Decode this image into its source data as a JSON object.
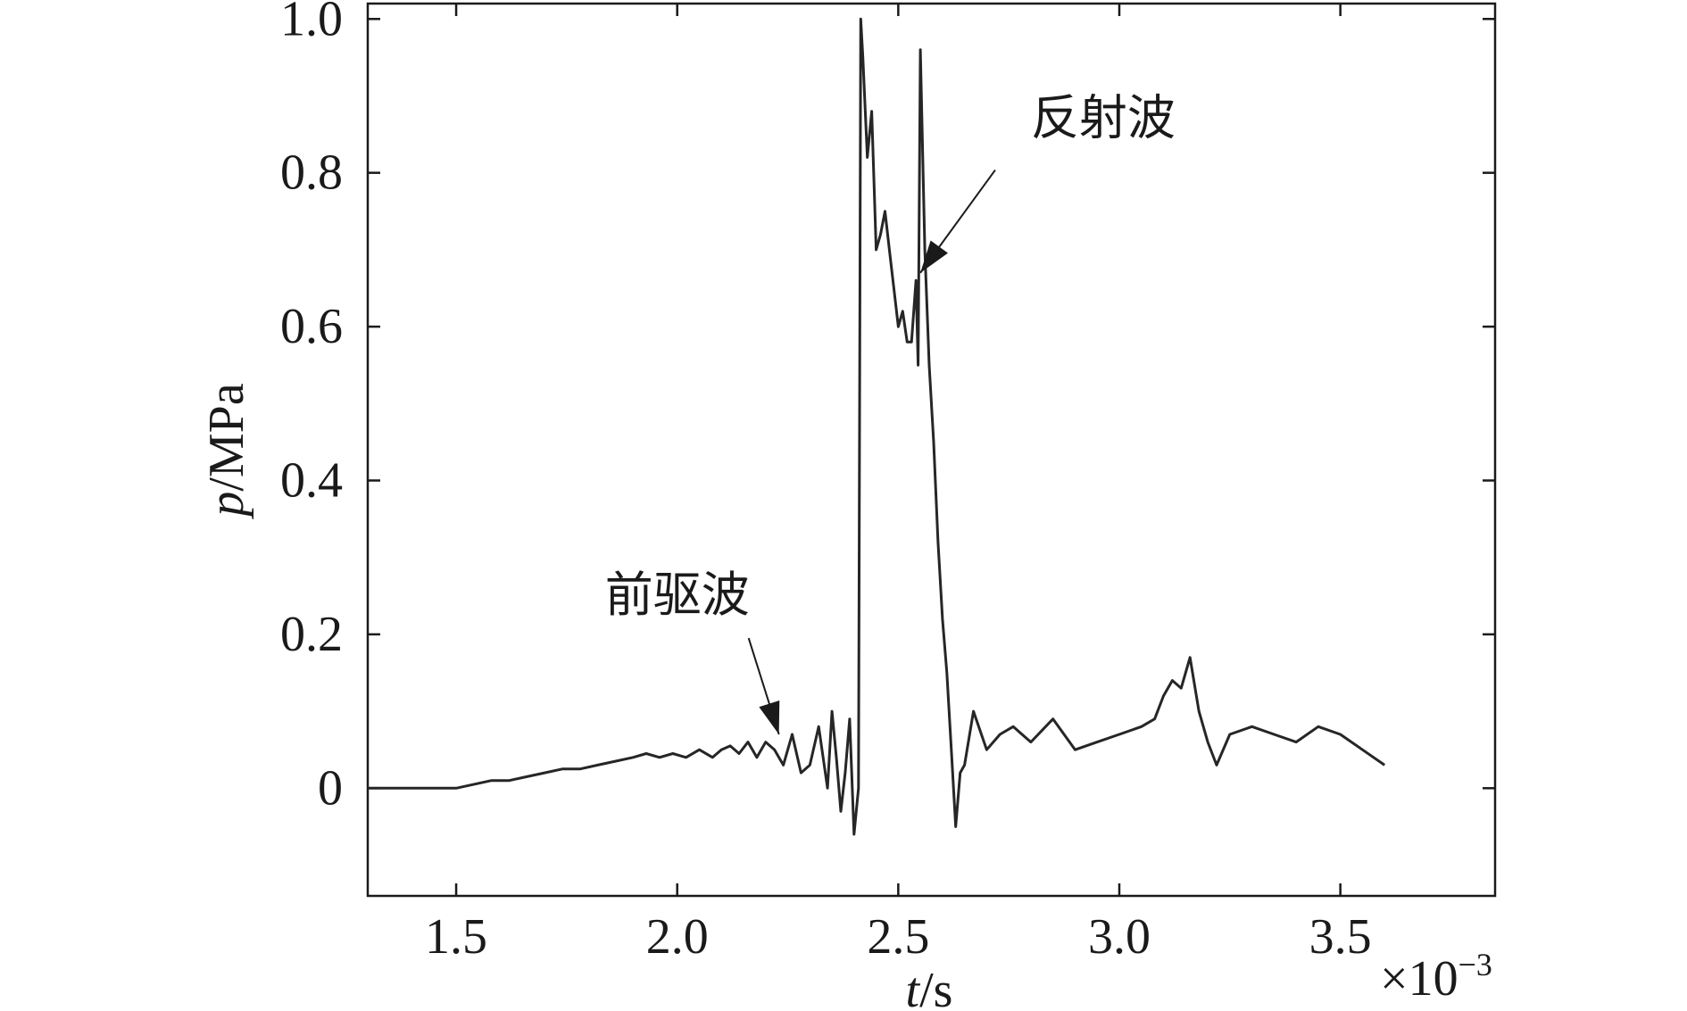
{
  "chart_data": {
    "type": "line",
    "xlabel": "t/s",
    "xlabel_italic": "t",
    "xlabel_rest": "/s",
    "ylabel": "p/MPa",
    "ylabel_italic": "p",
    "ylabel_rest": "/MPa",
    "x_multiplier": "×10",
    "x_multiplier_exp": "−3",
    "xlim": [
      1.3,
      3.85
    ],
    "ylim": [
      -0.14,
      1.02
    ],
    "x_ticks": [
      1.5,
      2.0,
      2.5,
      3.0,
      3.5
    ],
    "x_tick_labels": [
      "1.5",
      "2.0",
      "2.5",
      "3.0",
      "3.5"
    ],
    "y_ticks": [
      0,
      0.2,
      0.4,
      0.6,
      0.8,
      1.0
    ],
    "y_tick_labels": [
      "0",
      "0.2",
      "0.4",
      "0.6",
      "0.8",
      "1.0"
    ],
    "grid": false,
    "series": [
      {
        "x": [
          1.3,
          1.4,
          1.5,
          1.58,
          1.62,
          1.66,
          1.7,
          1.74,
          1.78,
          1.82,
          1.86,
          1.9,
          1.93,
          1.96,
          1.99,
          2.02,
          2.05,
          2.08,
          2.1,
          2.12,
          2.14,
          2.16,
          2.18,
          2.2,
          2.22,
          2.24,
          2.26,
          2.28,
          2.3,
          2.32,
          2.34,
          2.35,
          2.36,
          2.37,
          2.38,
          2.39,
          2.4,
          2.41,
          2.415,
          2.42,
          2.43,
          2.44,
          2.45,
          2.46,
          2.47,
          2.48,
          2.49,
          2.5,
          2.51,
          2.52,
          2.53,
          2.54,
          2.545,
          2.55,
          2.56,
          2.57,
          2.58,
          2.59,
          2.6,
          2.61,
          2.62,
          2.63,
          2.64,
          2.65,
          2.67,
          2.7,
          2.73,
          2.76,
          2.8,
          2.85,
          2.9,
          2.95,
          3.0,
          3.05,
          3.08,
          3.1,
          3.12,
          3.14,
          3.16,
          3.18,
          3.2,
          3.22,
          3.25,
          3.3,
          3.35,
          3.4,
          3.45,
          3.5,
          3.55,
          3.6
        ],
        "y": [
          0.0,
          0.0,
          0.0,
          0.01,
          0.01,
          0.015,
          0.02,
          0.025,
          0.025,
          0.03,
          0.035,
          0.04,
          0.045,
          0.04,
          0.045,
          0.04,
          0.05,
          0.04,
          0.05,
          0.055,
          0.045,
          0.06,
          0.04,
          0.06,
          0.05,
          0.03,
          0.07,
          0.02,
          0.03,
          0.08,
          0.0,
          0.1,
          0.04,
          -0.03,
          0.02,
          0.09,
          -0.06,
          0.0,
          1.0,
          0.95,
          0.82,
          0.88,
          0.7,
          0.72,
          0.75,
          0.7,
          0.65,
          0.6,
          0.62,
          0.58,
          0.58,
          0.66,
          0.55,
          0.96,
          0.7,
          0.55,
          0.45,
          0.32,
          0.22,
          0.15,
          0.05,
          -0.05,
          0.02,
          0.03,
          0.1,
          0.05,
          0.07,
          0.08,
          0.06,
          0.09,
          0.05,
          0.06,
          0.07,
          0.08,
          0.09,
          0.12,
          0.14,
          0.13,
          0.17,
          0.1,
          0.06,
          0.03,
          0.07,
          0.08,
          0.07,
          0.06,
          0.08,
          0.07,
          0.05,
          0.03
        ]
      }
    ],
    "annotations": [
      {
        "text": "前驱波",
        "target": [
          2.23,
          0.07
        ],
        "text_pos": [
          2.0,
          0.23
        ]
      },
      {
        "text": "反射波",
        "target": [
          2.55,
          0.67
        ],
        "text_pos": [
          2.8,
          0.85
        ]
      }
    ]
  }
}
